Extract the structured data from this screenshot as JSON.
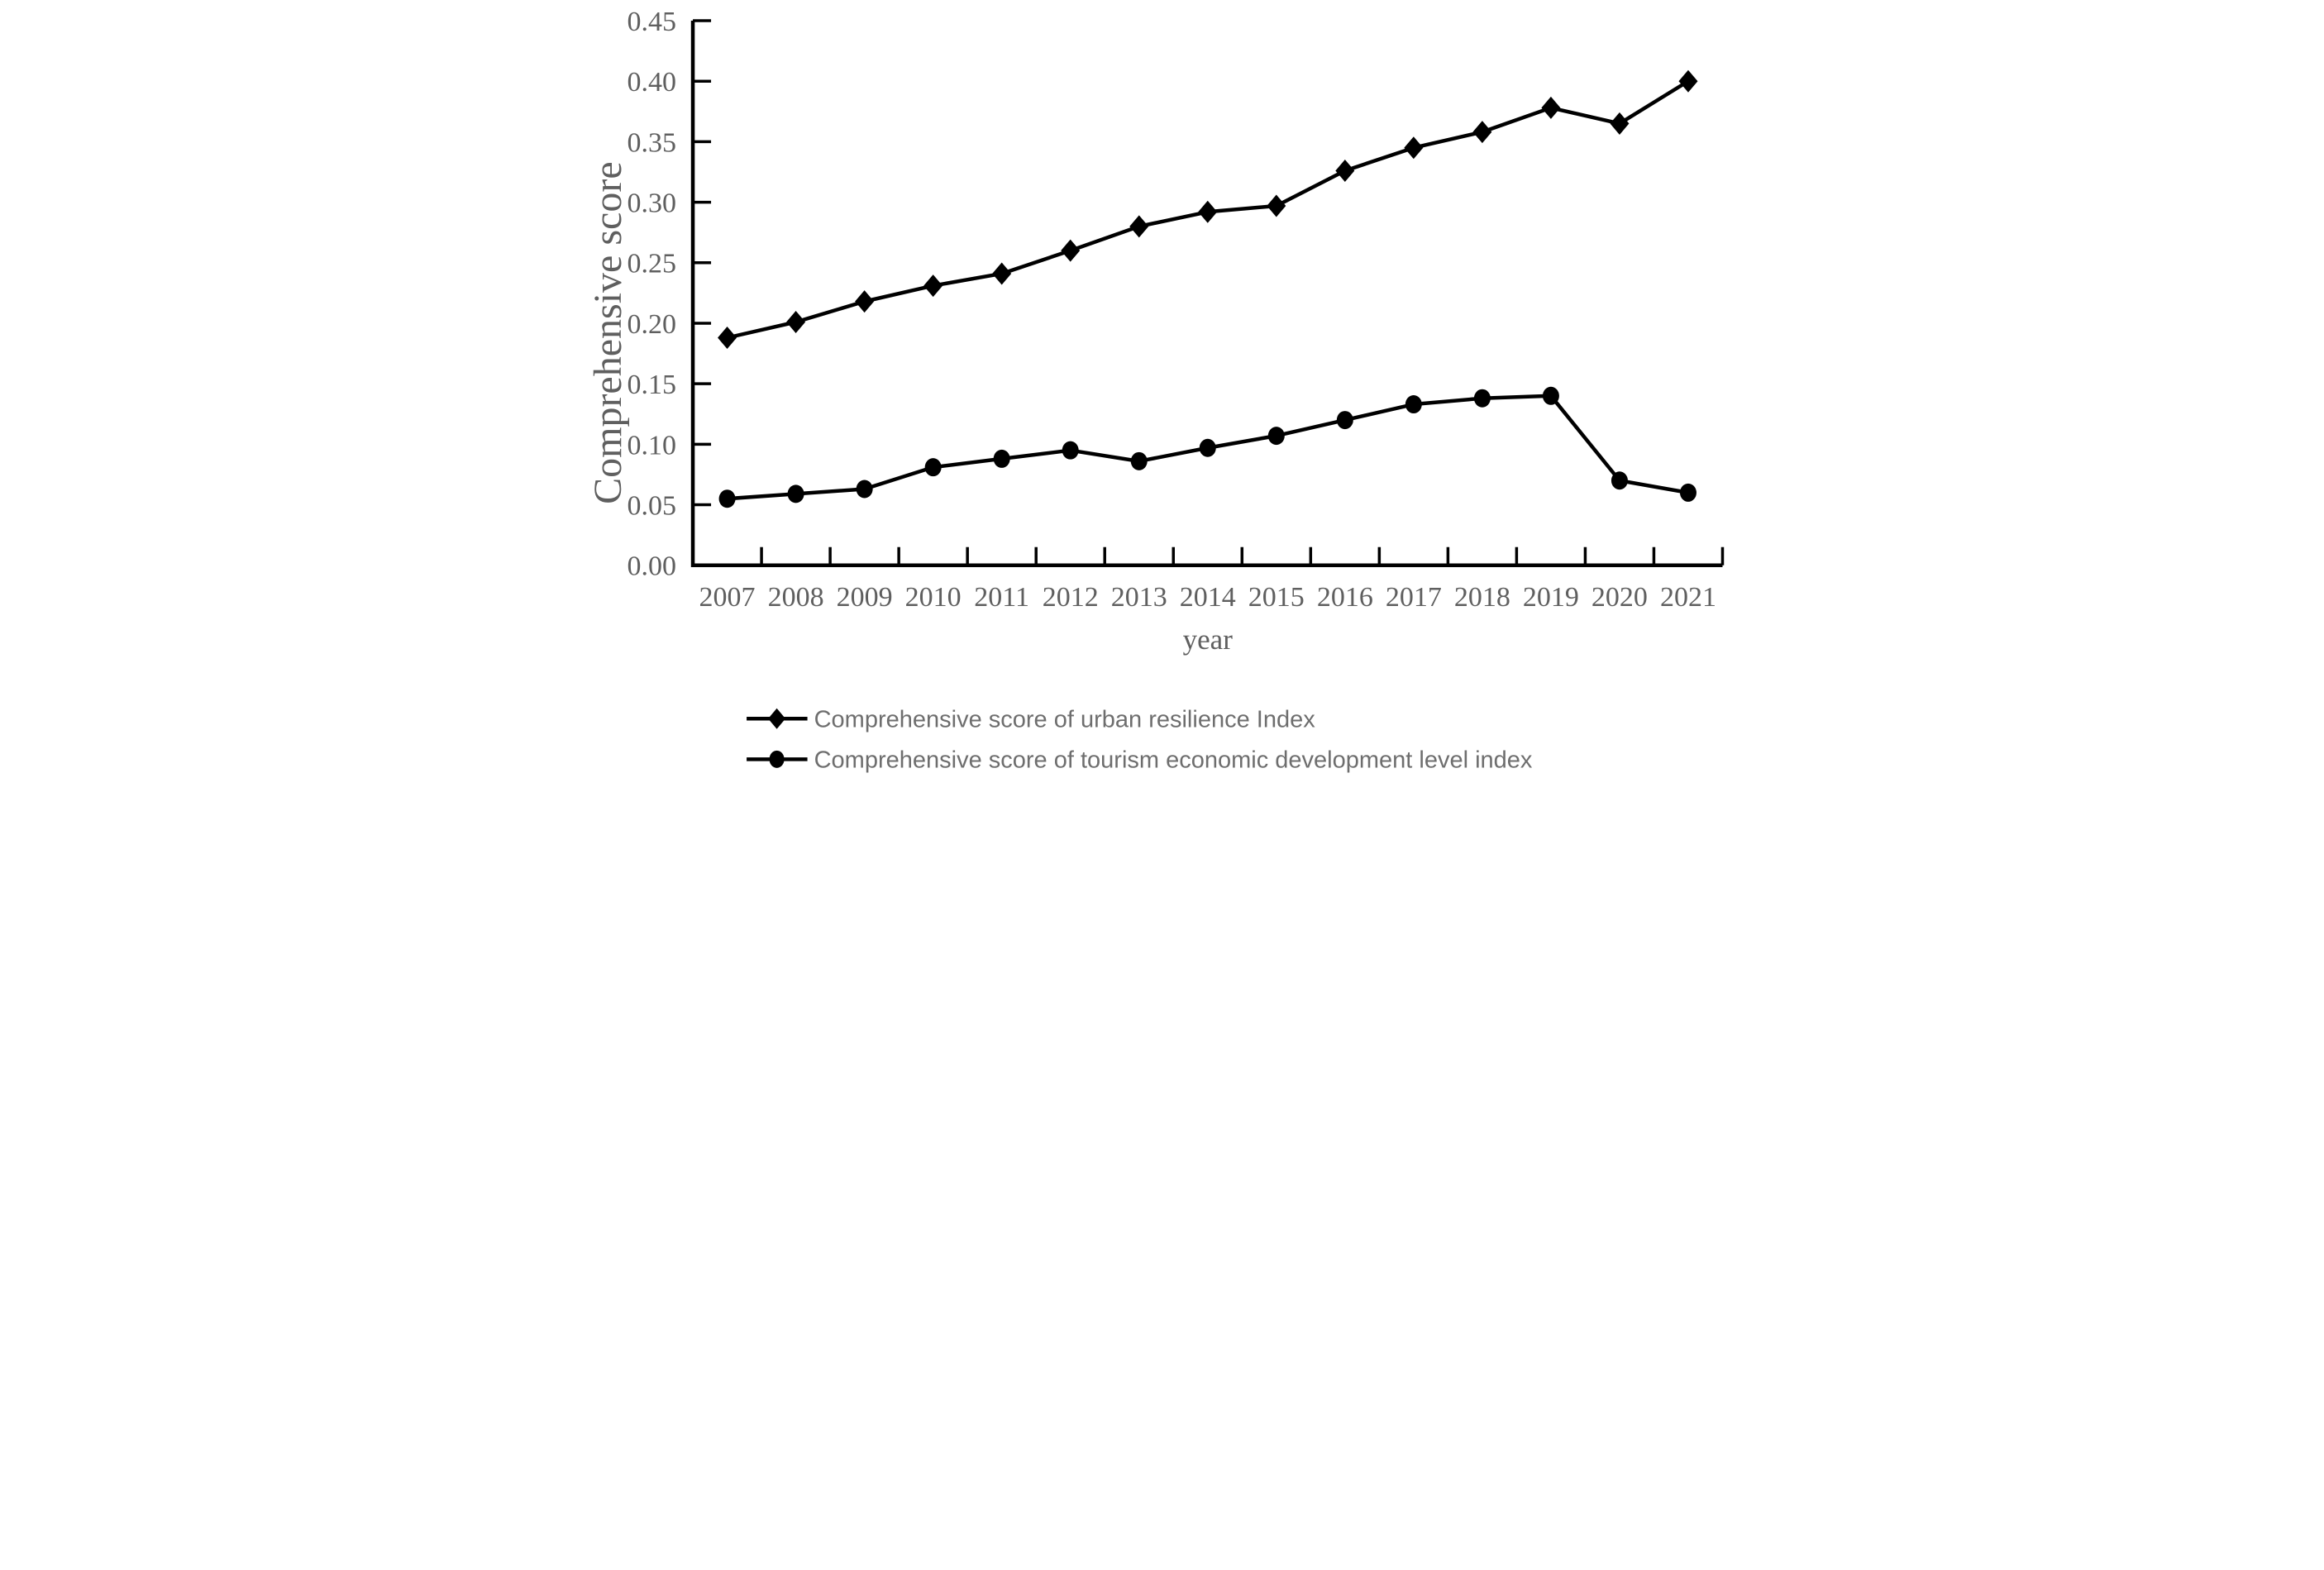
{
  "figure": {
    "background": "#ffffff"
  },
  "colors": {
    "series_line": "#000000",
    "axis_line": "#000000",
    "axis_text": "#5f5f5f",
    "legend_text": "#6e6e6e"
  },
  "axes": {
    "y_label": "Comprehensive score",
    "x_label": "year",
    "y_tick_labels": [
      "0.00",
      "0.05",
      "0.10",
      "0.15",
      "0.20",
      "0.25",
      "0.30",
      "0.35",
      "0.40",
      "0.45"
    ]
  },
  "legend": {
    "items": [
      {
        "marker": "diamond-icon",
        "label": "Comprehensive score of urban resilience Index"
      },
      {
        "marker": "circle-icon",
        "label": "Comprehensive score of tourism economic development level index"
      }
    ]
  },
  "chart_data": {
    "type": "line",
    "title": "",
    "xlabel": "year",
    "ylabel": "Comprehensive score",
    "ylim": [
      0,
      0.45
    ],
    "ytick_interval": 0.05,
    "grid": false,
    "legend_position": "bottom-left",
    "categories": [
      "2007",
      "2008",
      "2009",
      "2010",
      "2011",
      "2012",
      "2013",
      "2014",
      "2015",
      "2016",
      "2017",
      "2018",
      "2019",
      "2020",
      "2021"
    ],
    "series": [
      {
        "name": "Comprehensive score of urban resilience Index",
        "marker": "diamond",
        "color": "#000000",
        "values": [
          0.188,
          0.201,
          0.218,
          0.231,
          0.241,
          0.26,
          0.28,
          0.292,
          0.297,
          0.326,
          0.345,
          0.358,
          0.378,
          0.365,
          0.4
        ]
      },
      {
        "name": "Comprehensive score of tourism economic development level index",
        "marker": "circle",
        "color": "#000000",
        "values": [
          0.055,
          0.059,
          0.063,
          0.081,
          0.088,
          0.095,
          0.086,
          0.097,
          0.107,
          0.12,
          0.133,
          0.138,
          0.14,
          0.07,
          0.06
        ]
      }
    ]
  }
}
